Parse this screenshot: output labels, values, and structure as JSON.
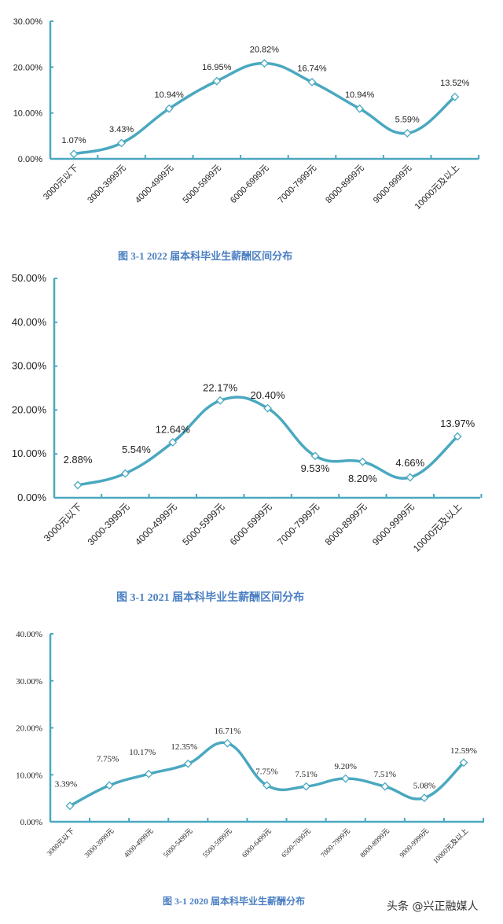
{
  "colors": {
    "line": "#4aa8c0",
    "axis": "#4aa8c0",
    "caption": "#4a7fc1",
    "marker_fill": "#ffffff",
    "text": "#222222"
  },
  "chart_data": [
    {
      "type": "line",
      "title": "图 3-1    2022 届本科毕业生薪酬区间分布",
      "xlabel": "",
      "ylabel": "",
      "ylim": [
        0,
        30
      ],
      "yticks": [
        "0.00%",
        "10.00%",
        "20.00%",
        "30.00%"
      ],
      "categories": [
        "3000元以下",
        "3000-3999元",
        "4000-4999元",
        "5000-5999元",
        "6000-6999元",
        "7000-7999元",
        "8000-8999元",
        "9000-9999元",
        "10000元及以上"
      ],
      "values": [
        1.07,
        3.43,
        10.94,
        16.95,
        20.82,
        16.74,
        10.94,
        5.59,
        13.52
      ],
      "labels": [
        "1.07%",
        "3.43%",
        "10.94%",
        "16.95%",
        "20.82%",
        "16.74%",
        "10.94%",
        "5.59%",
        "13.52%"
      ],
      "grid": false,
      "legend": "none"
    },
    {
      "type": "line",
      "title": "图 3-1    2021 届本科毕业生薪酬区间分布",
      "xlabel": "",
      "ylabel": "",
      "ylim": [
        0,
        50
      ],
      "yticks": [
        "0.00%",
        "10.00%",
        "20.00%",
        "30.00%",
        "40.00%",
        "50.00%"
      ],
      "categories": [
        "3000元以下",
        "3000-3999元",
        "4000-4999元",
        "5000-5999元",
        "6000-6999元",
        "7000-7999元",
        "8000-8999元",
        "9000-9999元",
        "10000元及以上"
      ],
      "values": [
        2.88,
        5.54,
        12.64,
        22.17,
        20.4,
        9.53,
        8.2,
        4.66,
        13.97
      ],
      "labels": [
        "2.88%",
        "5.54%",
        "12.64%",
        "22.17%",
        "20.40%",
        "9.53%",
        "8.20%",
        "4.66%",
        "13.97%"
      ],
      "grid": false,
      "legend": "none"
    },
    {
      "type": "line",
      "title": "图 3-1    2020 届本科毕业生薪酬分布",
      "xlabel": "",
      "ylabel": "",
      "ylim": [
        0,
        40
      ],
      "yticks": [
        "0.00%",
        "10.00%",
        "20.00%",
        "30.00%",
        "40.00%"
      ],
      "categories": [
        "3000元以下",
        "3000-3999元",
        "4000-4999元",
        "5000-5499元",
        "5500-5999元",
        "6000-6499元",
        "6500-7000元",
        "7000-7999元",
        "8000-8999元",
        "9000-9999元",
        "10000元及以上"
      ],
      "values": [
        3.39,
        7.75,
        10.17,
        12.35,
        16.71,
        7.75,
        7.51,
        9.2,
        7.51,
        5.08,
        12.59
      ],
      "labels": [
        "3.39%",
        "7.75%",
        "10.17%",
        "12.35%",
        "16.71%",
        "7.75%",
        "7.51%",
        "9.20%",
        "7.51%",
        "5.08%",
        "12.59%"
      ],
      "grid": false,
      "legend": "none"
    }
  ],
  "captions": {
    "c2022": "图 3-1    2022 届本科毕业生薪酬区间分布",
    "c2021": "图 3-1    2021 届本科毕业生薪酬区间分布",
    "c2020": "图 3-1    2020 届本科毕业生薪酬分布"
  },
  "watermark": "头条 @兴正融媒人"
}
